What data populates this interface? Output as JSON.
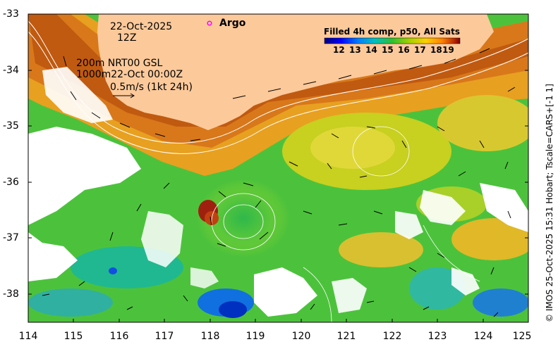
{
  "map": {
    "date_label": "22-Oct-2025",
    "time_label": "12Z",
    "legend_marker_label": "Argo",
    "contour_note_1": "200m  NRT00 GSL",
    "contour_note_2": "1000m22-Oct 00:00Z",
    "vector_scale_label": "0.5m/s (1kt 24h)",
    "colorbar_title": "Filled 4h comp, p50, All Sats",
    "colorbar_ticks": [
      "12",
      "13",
      "14",
      "15",
      "16",
      "17",
      "18",
      "19"
    ],
    "credit": "© IMOS 25-Oct-2025 15:31 Hobart; Tscale=CARS+[-1 1]",
    "lat_ticks": [
      "-33",
      "-34",
      "-35",
      "-36",
      "-37",
      "-38"
    ],
    "lon_ticks": [
      "114",
      "115",
      "116",
      "117",
      "118",
      "119",
      "120",
      "121",
      "122",
      "123",
      "124",
      "125"
    ],
    "colors": {
      "land": "#fcc99a",
      "no_data": "#ffffff",
      "argo_marker": "#ff00ff",
      "colormap": [
        "#000080",
        "#0000ff",
        "#0080ff",
        "#00c0c0",
        "#30c030",
        "#a0d000",
        "#ffd000",
        "#ff8000",
        "#c03000",
        "#800000"
      ]
    }
  }
}
